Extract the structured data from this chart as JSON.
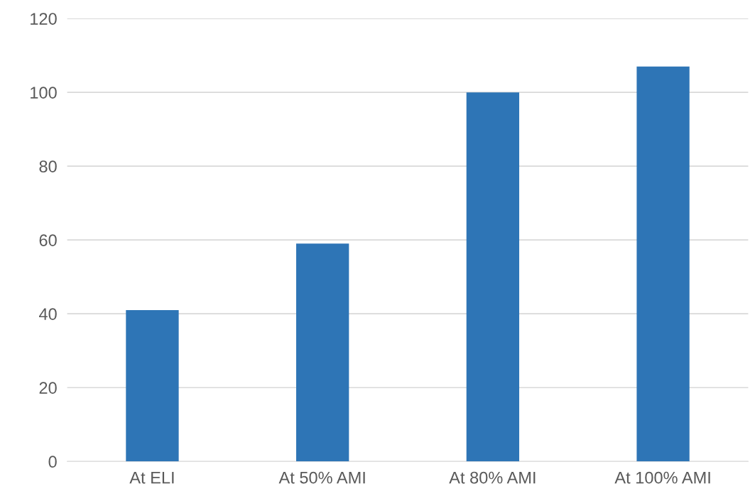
{
  "chart_data": {
    "type": "bar",
    "categories": [
      "At ELI",
      "At 50% AMI",
      "At 80% AMI",
      "At 100% AMI"
    ],
    "values": [
      41,
      59,
      100,
      107
    ],
    "color": "#2e75b6",
    "ylim": [
      0,
      120
    ],
    "yticks": [
      0,
      20,
      40,
      60,
      80,
      100,
      120
    ],
    "grid": "y"
  }
}
